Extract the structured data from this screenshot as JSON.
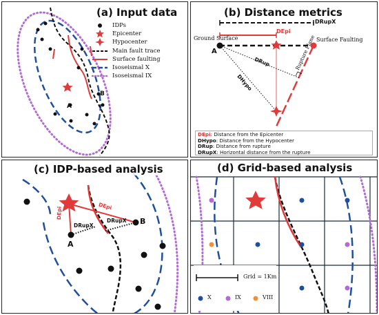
{
  "panel_a": {
    "title": "(a) Input data",
    "label_b": "B",
    "label_a": "A",
    "legend": [
      {
        "label": "IDPs",
        "symbol": "dot",
        "color": "#111111"
      },
      {
        "label": "Epicenter",
        "symbol": "star",
        "color": "#e03a3a"
      },
      {
        "label": "Hypocenter",
        "symbol": "star4",
        "color": "#e03a3a"
      },
      {
        "label": "Main fault trace",
        "symbol": "dash-black",
        "color": "#111111"
      },
      {
        "label": "Surface faulting",
        "symbol": "line-red",
        "color": "#e03a3a"
      },
      {
        "label": "Isoseismal X",
        "symbol": "dash-blue",
        "color": "#1f4f9c"
      },
      {
        "label": "Isoseismal IX",
        "symbol": "dot-purple",
        "color": "#b26ad9"
      }
    ]
  },
  "panel_b": {
    "title": "(b) Distance metrics",
    "druprx_label": "DRupX",
    "depi_label": "DEpi",
    "ground_surface": "Ground Surface",
    "surface_faulting": "Surface Faulting",
    "point_a": "A",
    "drup_label": "DRup",
    "dhypo_label": "DHypo",
    "rupture_plane": "Rupture Plane",
    "definitions": [
      {
        "term": "DEpi",
        "text": ": Distance from the Epicenter",
        "color": "#d63a3a"
      },
      {
        "term": "DHypo",
        "text": ": Distance from the Hypocenter",
        "color": "#111111"
      },
      {
        "term": "DRup",
        "text": ": Distance from rupture",
        "color": "#111111"
      },
      {
        "term": "DRupX",
        "text": ": Horizontal distance from the rupture",
        "color": "#111111"
      }
    ]
  },
  "panel_c": {
    "title": "(c) IDP-based analysis",
    "depi_left": "DEpi",
    "depi_right": "DEpi",
    "drupx_left": "DRupX",
    "drupx_right": "DRupX",
    "point_a": "A",
    "point_b": "B"
  },
  "panel_d": {
    "title": "(d) Grid-based analysis",
    "scale_label": "Grid = 1Km",
    "legend": [
      {
        "label": "X",
        "color": "#1f4f9c"
      },
      {
        "label": "IX",
        "color": "#b26ad9"
      },
      {
        "label": "VIII",
        "color": "#f0903a"
      }
    ]
  },
  "colors": {
    "red": "#e03a3a",
    "blue": "#1f4f9c",
    "purple": "#b26ad9",
    "orange": "#f0903a",
    "black": "#111111"
  }
}
